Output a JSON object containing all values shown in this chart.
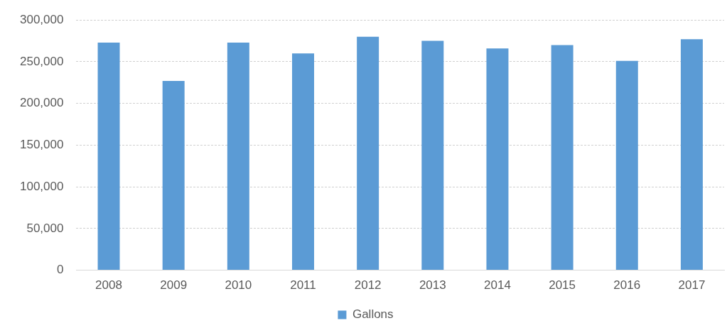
{
  "chart_data": {
    "type": "bar",
    "categories": [
      "2008",
      "2009",
      "2010",
      "2011",
      "2012",
      "2013",
      "2014",
      "2015",
      "2016",
      "2017"
    ],
    "series": [
      {
        "name": "Gallons",
        "color": "#5b9bd5",
        "values": [
          273000,
          227000,
          273000,
          260000,
          280000,
          275000,
          266000,
          270000,
          251000,
          277000
        ]
      }
    ],
    "ylim": [
      0,
      300000
    ],
    "yticks": [
      0,
      {
        "value": 50000,
        "label": "50,000"
      },
      {
        "value": 100000,
        "label": "100,000"
      },
      {
        "value": 150000,
        "label": "150,000"
      },
      {
        "value": 200000,
        "label": "200,000"
      },
      {
        "value": 250000,
        "label": "250,000"
      },
      {
        "value": 300000,
        "label": "300,000"
      }
    ],
    "grid": "y",
    "legend": "bottom"
  }
}
